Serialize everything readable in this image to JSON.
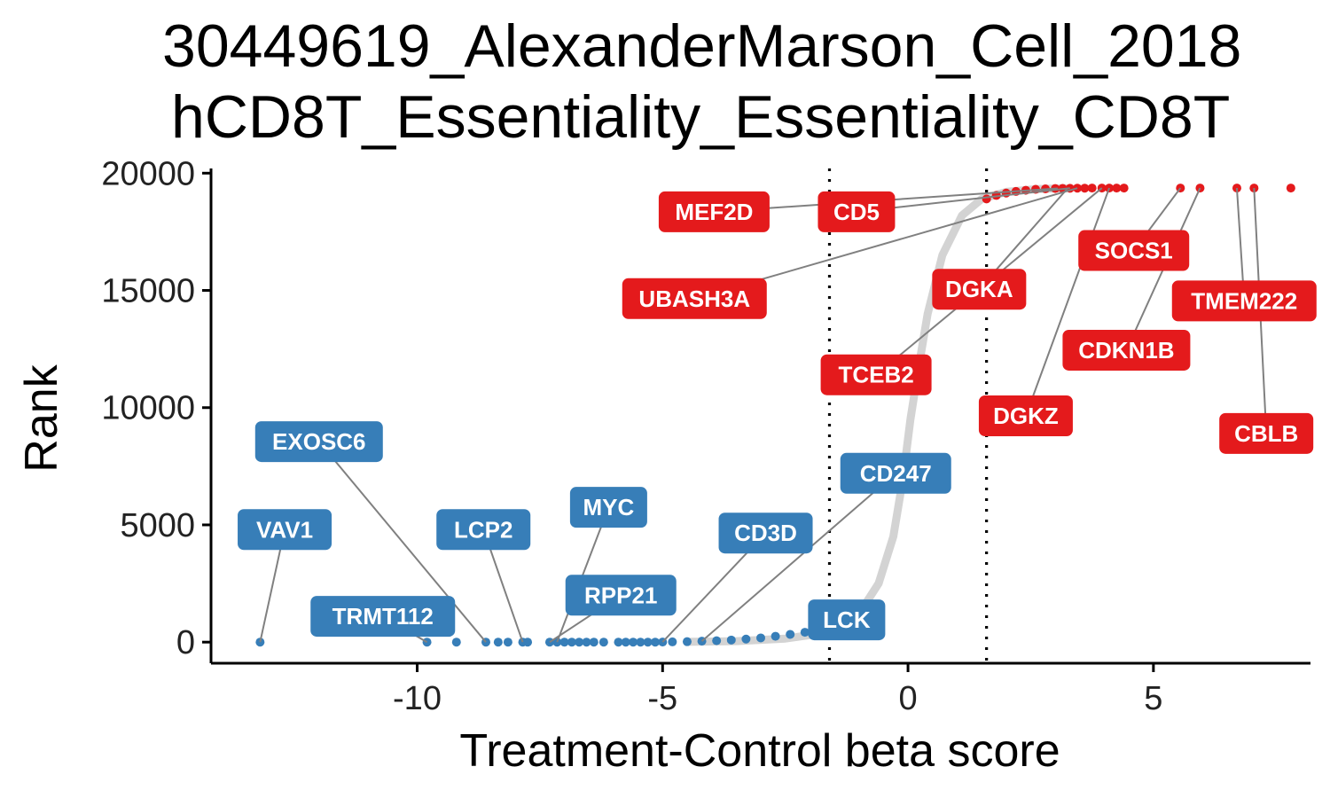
{
  "chart_data": {
    "type": "scatter",
    "title_lines": [
      "30449619_AlexanderMarson_Cell_2018",
      "hCD8T_Essentiality_Essentiality_CD8T"
    ],
    "xlabel": "Treatment-Control beta score",
    "ylabel": "Rank",
    "xlim": [
      -14.2,
      8.2
    ],
    "ylim": [
      -900,
      20200
    ],
    "x_ticks": [
      -10,
      -5,
      0,
      5
    ],
    "x_tick_labels": [
      "-10",
      "-5",
      "0",
      "5"
    ],
    "y_ticks": [
      0,
      5000,
      10000,
      15000,
      20000
    ],
    "y_tick_labels": [
      "0",
      "5000",
      "10000",
      "15000",
      "20000"
    ],
    "threshold_x": [
      -1.6,
      1.6
    ],
    "grid": false,
    "legend": "none",
    "colors": {
      "negative": "#377EB8",
      "positive": "#E41A1C",
      "neutral": "#d3d3d3",
      "leader": "#808080"
    },
    "curve": {
      "description_points": [
        [
          -4.5,
          10
        ],
        [
          -3.5,
          40
        ],
        [
          -2.5,
          150
        ],
        [
          -2.0,
          300
        ],
        [
          -1.5,
          600
        ],
        [
          -1.0,
          1200
        ],
        [
          -0.6,
          2500
        ],
        [
          -0.3,
          4500
        ],
        [
          -0.1,
          7000
        ],
        [
          0.05,
          9500
        ],
        [
          0.2,
          11500
        ],
        [
          0.4,
          14000
        ],
        [
          0.7,
          16500
        ],
        [
          1.1,
          18200
        ],
        [
          1.5,
          18900
        ],
        [
          2.0,
          19200
        ],
        [
          2.6,
          19320
        ],
        [
          3.2,
          19360
        ]
      ]
    },
    "negative_points": [
      [
        -13.2,
        0
      ],
      [
        -9.8,
        0
      ],
      [
        -9.2,
        0
      ],
      [
        -8.6,
        0
      ],
      [
        -8.35,
        0
      ],
      [
        -8.15,
        0
      ],
      [
        -7.85,
        0
      ],
      [
        -7.75,
        0
      ],
      [
        -7.3,
        0
      ],
      [
        -7.15,
        0
      ],
      [
        -7.0,
        0
      ],
      [
        -6.85,
        0
      ],
      [
        -6.7,
        0
      ],
      [
        -6.55,
        0
      ],
      [
        -6.4,
        0
      ],
      [
        -6.2,
        0
      ],
      [
        -5.9,
        0
      ],
      [
        -5.75,
        0
      ],
      [
        -5.6,
        0
      ],
      [
        -5.45,
        0
      ],
      [
        -5.3,
        0
      ],
      [
        -5.15,
        0
      ],
      [
        -5.0,
        5
      ],
      [
        -4.8,
        10
      ],
      [
        -4.5,
        20
      ],
      [
        -4.2,
        40
      ],
      [
        -3.9,
        60
      ],
      [
        -3.6,
        90
      ],
      [
        -3.3,
        130
      ],
      [
        -3.0,
        180
      ],
      [
        -2.7,
        250
      ],
      [
        -2.4,
        330
      ],
      [
        -2.1,
        420
      ],
      [
        -1.9,
        500
      ],
      [
        -1.75,
        560
      ],
      [
        -1.65,
        620
      ]
    ],
    "positive_points": [
      [
        1.6,
        18900
      ],
      [
        1.8,
        19050
      ],
      [
        2.0,
        19150
      ],
      [
        2.2,
        19220
      ],
      [
        2.4,
        19270
      ],
      [
        2.6,
        19310
      ],
      [
        2.8,
        19330
      ],
      [
        3.0,
        19345
      ],
      [
        3.15,
        19350
      ],
      [
        3.3,
        19355
      ],
      [
        3.45,
        19360
      ],
      [
        3.6,
        19360
      ],
      [
        3.75,
        19365
      ],
      [
        3.95,
        19365
      ],
      [
        4.1,
        19365
      ],
      [
        4.25,
        19365
      ],
      [
        4.4,
        19365
      ],
      [
        5.55,
        19365
      ],
      [
        5.95,
        19365
      ],
      [
        6.7,
        19365
      ],
      [
        7.05,
        19365
      ],
      [
        7.8,
        19365
      ]
    ],
    "labels": [
      {
        "text": "MEF2D",
        "kind": "positive",
        "x": 3.05,
        "y": 19350,
        "lx": -3.95,
        "ly": 18350
      },
      {
        "text": "CD5",
        "kind": "positive",
        "x": 3.3,
        "y": 19360,
        "lx": -1.05,
        "ly": 18350
      },
      {
        "text": "UBASH3A",
        "kind": "positive",
        "x": 3.45,
        "y": 19360,
        "lx": -4.35,
        "ly": 14650
      },
      {
        "text": "DGKA",
        "kind": "positive",
        "x": 3.25,
        "y": 19350,
        "lx": 1.45,
        "ly": 15050
      },
      {
        "text": "TCEB2",
        "kind": "positive",
        "x": 3.95,
        "y": 19365,
        "lx": -0.65,
        "ly": 11400
      },
      {
        "text": "SOCS1",
        "kind": "positive",
        "x": 5.55,
        "y": 19365,
        "lx": 4.6,
        "ly": 16700
      },
      {
        "text": "CDKN1B",
        "kind": "positive",
        "x": 5.95,
        "y": 19365,
        "lx": 4.45,
        "ly": 12450
      },
      {
        "text": "DGKZ",
        "kind": "positive",
        "x": 4.1,
        "y": 19365,
        "lx": 2.4,
        "ly": 9650
      },
      {
        "text": "TMEM222",
        "kind": "positive",
        "x": 6.7,
        "y": 19365,
        "lx": 6.85,
        "ly": 14550
      },
      {
        "text": "CBLB",
        "kind": "positive",
        "x": 7.05,
        "y": 19365,
        "lx": 7.3,
        "ly": 8900
      },
      {
        "text": "EXOSC6",
        "kind": "negative",
        "x": -8.6,
        "y": 0,
        "lx": -12.0,
        "ly": 8550
      },
      {
        "text": "VAV1",
        "kind": "negative",
        "x": -13.2,
        "y": 0,
        "lx": -12.7,
        "ly": 4800
      },
      {
        "text": "LCP2",
        "kind": "negative",
        "x": -7.85,
        "y": 0,
        "lx": -8.65,
        "ly": 4800
      },
      {
        "text": "MYC",
        "kind": "negative",
        "x": -7.15,
        "y": 0,
        "lx": -6.1,
        "ly": 5750
      },
      {
        "text": "RPP21",
        "kind": "negative",
        "x": -7.3,
        "y": 0,
        "lx": -5.85,
        "ly": 2000
      },
      {
        "text": "TRMT112",
        "kind": "negative",
        "x": -9.8,
        "y": 0,
        "lx": -10.7,
        "ly": 1100
      },
      {
        "text": "CD3D",
        "kind": "negative",
        "x": -5.0,
        "y": 5,
        "lx": -2.9,
        "ly": 4650
      },
      {
        "text": "CD247",
        "kind": "negative",
        "x": -4.2,
        "y": 40,
        "lx": -0.25,
        "ly": 7200
      },
      {
        "text": "LCK",
        "kind": "negative",
        "x": -1.75,
        "y": 560,
        "lx": -1.25,
        "ly": 950
      }
    ]
  }
}
